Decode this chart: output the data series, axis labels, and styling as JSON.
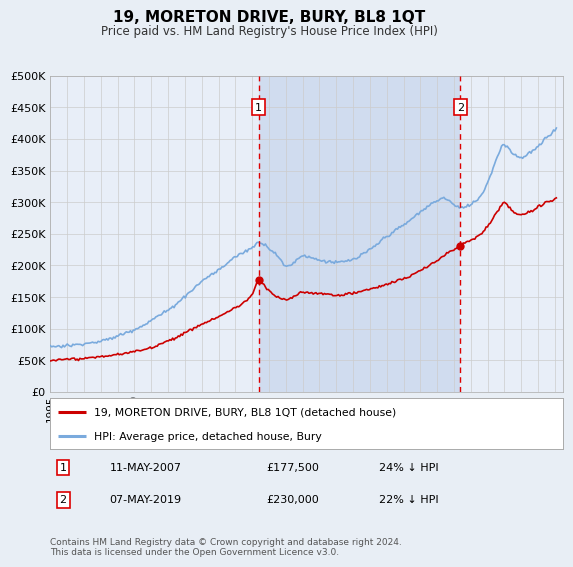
{
  "title": "19, MORETON DRIVE, BURY, BL8 1QT",
  "subtitle": "Price paid vs. HM Land Registry's House Price Index (HPI)",
  "background_color": "#e8eef5",
  "plot_bg_color": "#e8eef8",
  "shade_color": "#ccd9ee",
  "grid_color": "#cccccc",
  "hpi_color": "#7aaadd",
  "price_color": "#cc0000",
  "vline_color": "#dd0000",
  "annotation1": {
    "label": "1",
    "date": "11-MAY-2007",
    "price": "£177,500",
    "note": "24% ↓ HPI"
  },
  "annotation2": {
    "label": "2",
    "date": "07-MAY-2019",
    "price": "£230,000",
    "note": "22% ↓ HPI"
  },
  "legend_line1": "19, MORETON DRIVE, BURY, BL8 1QT (detached house)",
  "legend_line2": "HPI: Average price, detached house, Bury",
  "footer": "Contains HM Land Registry data © Crown copyright and database right 2024.\nThis data is licensed under the Open Government Licence v3.0.",
  "sale1_year": 2007.375,
  "sale2_year": 2019.375,
  "sale1_price": 177500,
  "sale2_price": 230000,
  "ylim": [
    0,
    500000
  ],
  "xlim_start": 1995,
  "xlim_end": 2025.5
}
